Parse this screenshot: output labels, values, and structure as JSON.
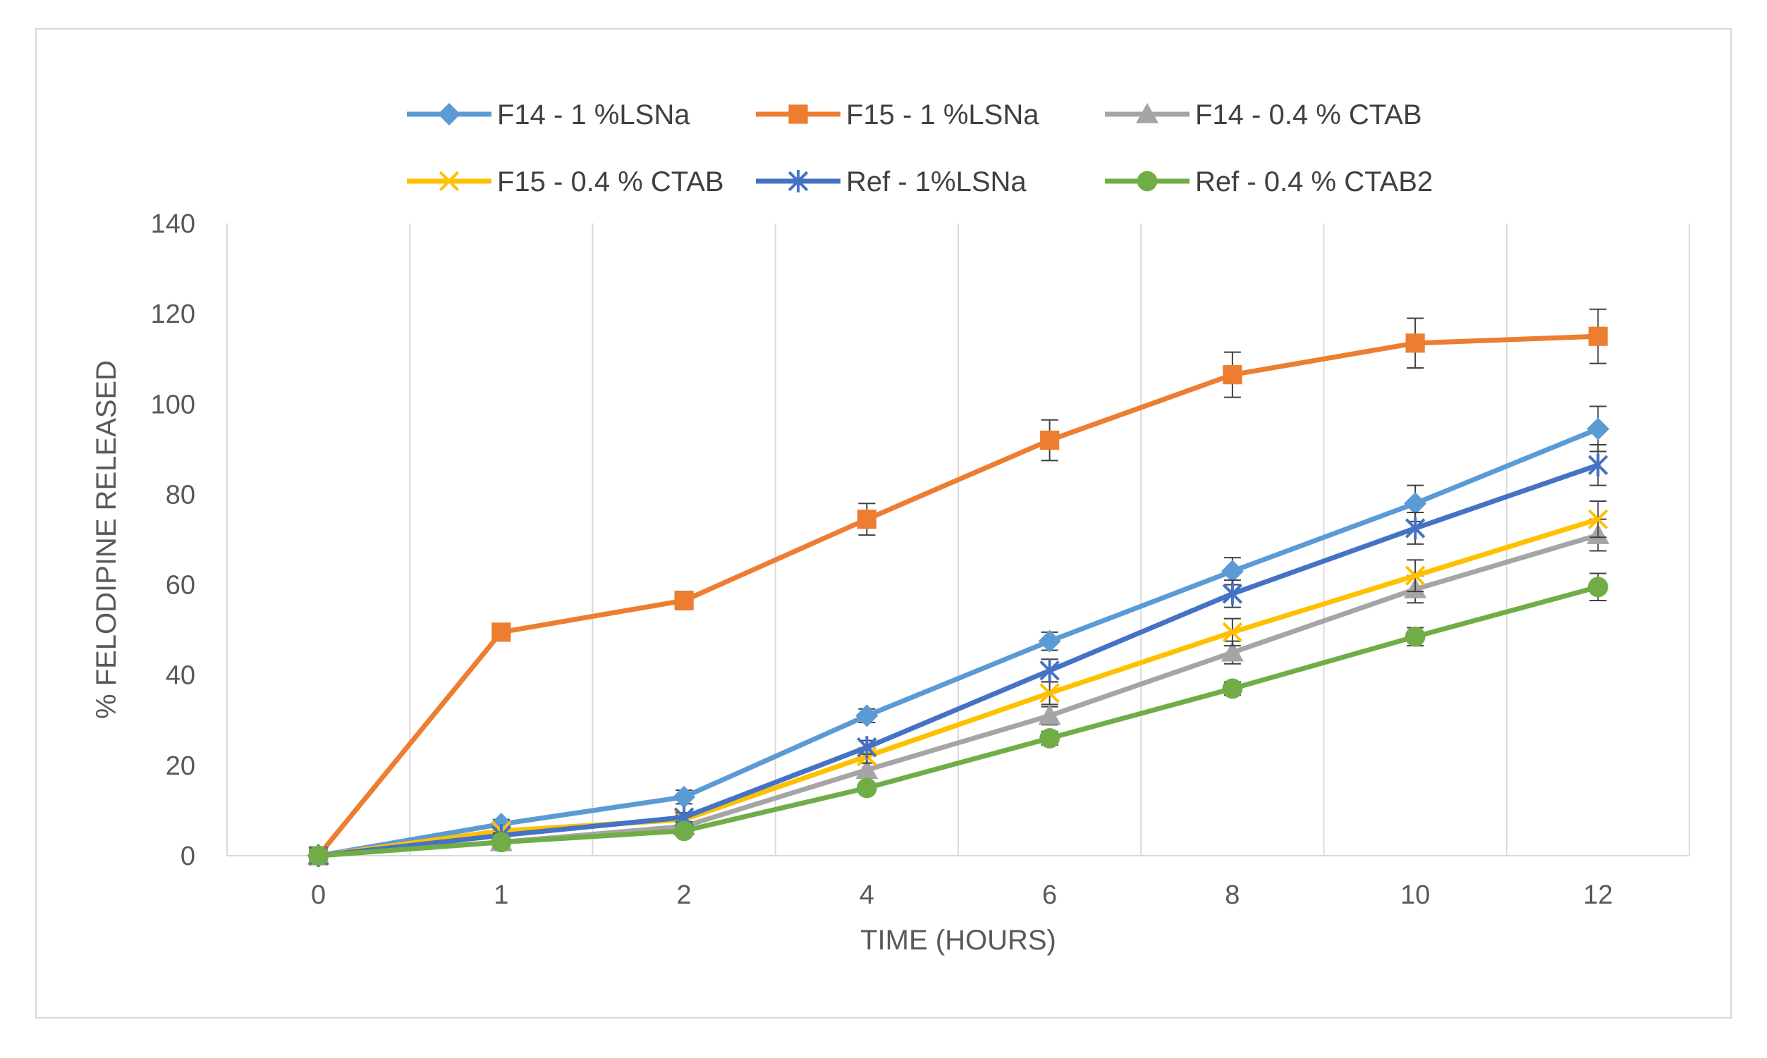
{
  "chart_data": {
    "type": "line",
    "title": "",
    "xlabel": "TIME (HOURS)",
    "ylabel": "% FELODIPINE RELEASED",
    "categories": [
      "0",
      "1",
      "2",
      "4",
      "6",
      "8",
      "10",
      "12"
    ],
    "ylim": [
      0,
      140
    ],
    "yticks": [
      0,
      20,
      40,
      60,
      80,
      100,
      120,
      140
    ],
    "grid": "vertical",
    "legend_position": "top",
    "series": [
      {
        "name": "F14 - 1 %LSNa",
        "color": "#5b9bd5",
        "marker": "diamond",
        "values": [
          0,
          7,
          13,
          31,
          47.5,
          63,
          78,
          94.5
        ],
        "errors": [
          0,
          1,
          1.5,
          1.5,
          2,
          3,
          4,
          5
        ]
      },
      {
        "name": "F15 - 1 %LSNa",
        "color": "#ed7d31",
        "marker": "square",
        "values": [
          0,
          49.5,
          56.5,
          74.5,
          92,
          106.5,
          113.5,
          115
        ],
        "errors": [
          0,
          1.5,
          2,
          3.5,
          4.5,
          5,
          5.5,
          6
        ]
      },
      {
        "name": "F14 - 0.4 % CTAB",
        "color": "#a5a5a5",
        "marker": "triangle",
        "values": [
          0,
          3,
          6.5,
          19,
          31,
          45,
          59,
          71
        ],
        "errors": [
          0,
          0.5,
          1,
          1.5,
          2,
          2.5,
          3,
          3.5
        ]
      },
      {
        "name": "F15 - 0.4 % CTAB",
        "color": "#ffc000",
        "marker": "x",
        "values": [
          0,
          5.5,
          8,
          22,
          36,
          49.5,
          62,
          74.5
        ],
        "errors": [
          0,
          0.5,
          1,
          1.5,
          2.5,
          3,
          3.5,
          4
        ]
      },
      {
        "name": "Ref - 1%LSNa",
        "color": "#4472c4",
        "marker": "star",
        "values": [
          0,
          4.5,
          8.5,
          24,
          41,
          58,
          72.5,
          86.5
        ],
        "errors": [
          0,
          0.5,
          1,
          1.5,
          2.5,
          3,
          3.5,
          4.5
        ]
      },
      {
        "name": "Ref - 0.4 % CTAB2",
        "color": "#70ad47",
        "marker": "circle",
        "values": [
          0,
          3,
          5.5,
          15,
          26,
          37,
          48.5,
          59.5
        ],
        "errors": [
          0,
          0.5,
          0.5,
          1,
          1.5,
          1.5,
          2,
          3
        ]
      }
    ]
  }
}
